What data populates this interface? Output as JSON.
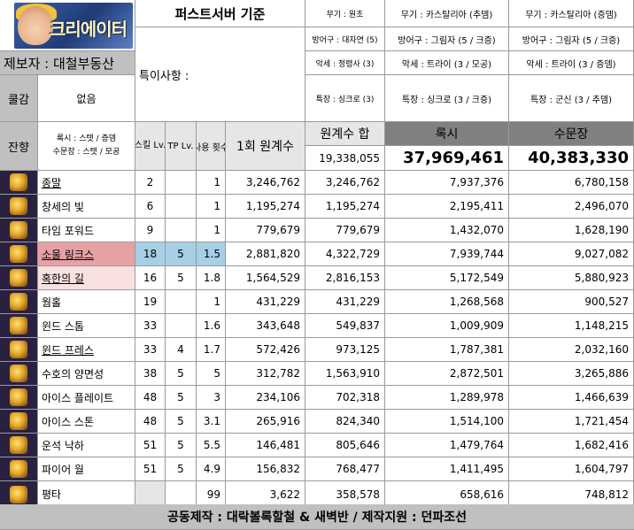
{
  "header": {
    "logo_text": "크리에이터",
    "title": "퍼스트서버 기준",
    "reporter": "제보자 : 대철부동산",
    "special_label": "특이사항 :",
    "cool_label": "쿨감",
    "cool_value": "없음",
    "remain_label": "잔향",
    "remain_note_1": "록시 : 스탯 / 증뎀",
    "remain_note_2": "수문장 : 스탯 / 모공",
    "footer": "공동제작 : 대락볼록할철 & 새벽반 / 제작지원 : 던파조선"
  },
  "equipment": [
    [
      "무기 : 원초",
      "방어구 : 대자연 (5)",
      "악세 : 정령사 (3)",
      "특장 : 싱크로 (3)"
    ],
    [
      "무기 : 카스탈리아 (추뎀)",
      "방어구 : 그림자 (5 / 크증)",
      "악세 : 트라이 (3 / 모공)",
      "특장 : 싱크로 (3 / 크증)"
    ],
    [
      "무기 : 카스탈리아 (증뎀)",
      "방어구 : 그림자 (5 / 크증)",
      "악세 : 트라이 (3 / 증뎀)",
      "특장 : 군신 (3 / 추뎀)"
    ]
  ],
  "columns": {
    "skill_lv": "스킬 Lv.",
    "tp_lv": "TP Lv.",
    "uses": "사용 횟수",
    "base": "1회 원계수",
    "sum": "원계수 합",
    "roxy": "록시",
    "gatekeeper": "수문장"
  },
  "totals": {
    "sum": "19,338,055",
    "roxy": "37,969,461",
    "gatekeeper": "40,383,330"
  },
  "skills": [
    {
      "name": "종말",
      "lv": "2",
      "tp": "",
      "uses": "1",
      "base": "3,246,762",
      "sum": "3,246,762",
      "roxy": "7,937,376",
      "gk": "6,780,158",
      "hl": "u"
    },
    {
      "name": "창세의 빛",
      "lv": "6",
      "tp": "",
      "uses": "1",
      "base": "1,195,274",
      "sum": "1,195,274",
      "roxy": "2,195,411",
      "gk": "2,496,070",
      "hl": ""
    },
    {
      "name": "타임 포워드",
      "lv": "9",
      "tp": "",
      "uses": "1",
      "base": "779,679",
      "sum": "779,679",
      "roxy": "1,432,070",
      "gk": "1,628,190",
      "hl": ""
    },
    {
      "name": "소울 링크스",
      "lv": "18",
      "tp": "5",
      "uses": "1.5",
      "base": "2,881,820",
      "sum": "4,322,729",
      "roxy": "7,939,744",
      "gk": "9,027,082",
      "hl": "pink"
    },
    {
      "name": "혹한의 길",
      "lv": "16",
      "tp": "5",
      "uses": "1.8",
      "base": "1,564,529",
      "sum": "2,816,153",
      "roxy": "5,172,549",
      "gk": "5,880,923",
      "hl": "pinklight"
    },
    {
      "name": "웜홀",
      "lv": "19",
      "tp": "",
      "uses": "1",
      "base": "431,229",
      "sum": "431,229",
      "roxy": "1,268,568",
      "gk": "900,527",
      "hl": ""
    },
    {
      "name": "윈드 스톰",
      "lv": "33",
      "tp": "",
      "uses": "1.6",
      "base": "343,648",
      "sum": "549,837",
      "roxy": "1,009,909",
      "gk": "1,148,215",
      "hl": ""
    },
    {
      "name": "윈드 프레스",
      "lv": "33",
      "tp": "4",
      "uses": "1.7",
      "base": "572,426",
      "sum": "973,125",
      "roxy": "1,787,381",
      "gk": "2,032,160",
      "hl": "u"
    },
    {
      "name": "수호의 양면성",
      "lv": "38",
      "tp": "5",
      "uses": "5",
      "base": "312,782",
      "sum": "1,563,910",
      "roxy": "2,872,501",
      "gk": "3,265,886",
      "hl": ""
    },
    {
      "name": "아이스 플레이트",
      "lv": "48",
      "tp": "5",
      "uses": "3",
      "base": "234,106",
      "sum": "702,318",
      "roxy": "1,289,978",
      "gk": "1,466,639",
      "hl": ""
    },
    {
      "name": "아이스 스톤",
      "lv": "48",
      "tp": "5",
      "uses": "3.1",
      "base": "265,916",
      "sum": "824,340",
      "roxy": "1,514,100",
      "gk": "1,721,454",
      "hl": ""
    },
    {
      "name": "운석 낙하",
      "lv": "51",
      "tp": "5",
      "uses": "5.5",
      "base": "146,481",
      "sum": "805,646",
      "roxy": "1,479,764",
      "gk": "1,682,416",
      "hl": ""
    },
    {
      "name": "파이어 월",
      "lv": "51",
      "tp": "5",
      "uses": "4.9",
      "base": "156,832",
      "sum": "768,477",
      "roxy": "1,411,495",
      "gk": "1,604,797",
      "hl": ""
    },
    {
      "name": "평타",
      "lv": "",
      "tp": "",
      "uses": "99",
      "base": "3,622",
      "sum": "358,578",
      "roxy": "658,616",
      "gk": "748,812",
      "hl": ""
    }
  ]
}
